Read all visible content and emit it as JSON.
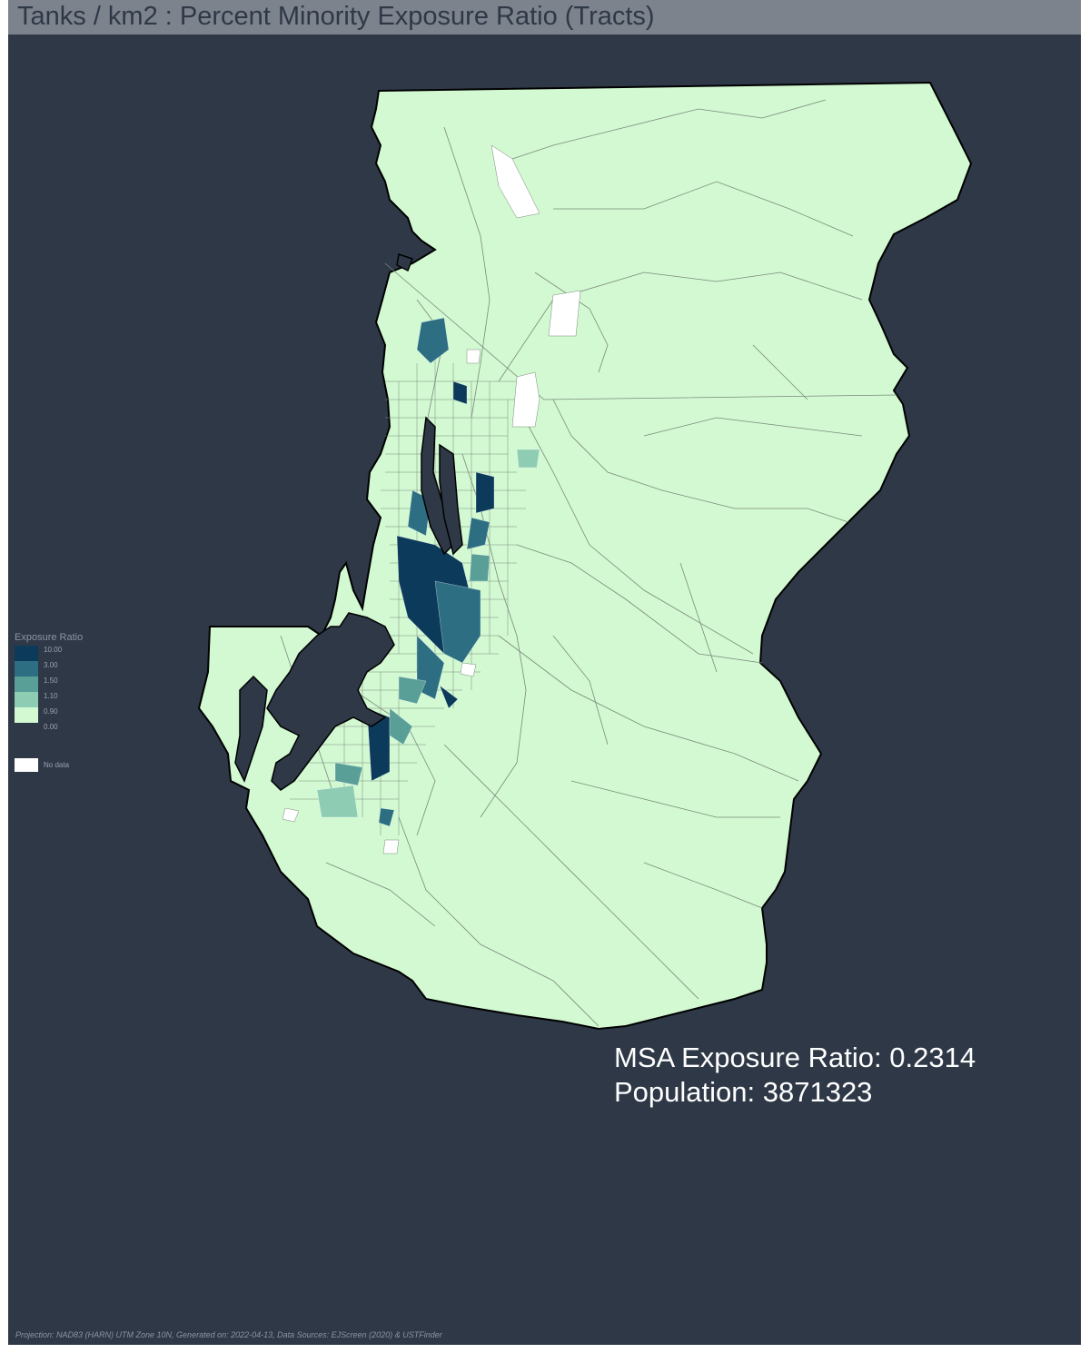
{
  "title": "Tanks / km2 : Percent Minority Exposure Ratio (Tracts)",
  "legend": {
    "title": "Exposure Ratio",
    "bins": [
      {
        "label": "10.00",
        "color": "#0c3a5a"
      },
      {
        "label": "3.00",
        "color": "#2d6e82"
      },
      {
        "label": "1.50",
        "color": "#5a9e98"
      },
      {
        "label": "1.10",
        "color": "#8ecdb4"
      },
      {
        "label": "0.90",
        "color": "#d2f9d2"
      },
      {
        "label": "0.00",
        "color": ""
      }
    ],
    "no_data_label": "No data",
    "no_data_color": "#ffffff"
  },
  "stats": {
    "exposure": "MSA Exposure Ratio: 0.2314",
    "population": "Population: 3871323"
  },
  "footer": "Projection: NAD83 (HARN) UTM Zone 10N, Generated on: 2022-04-13, Data Sources: EJScreen (2020) & USTFinder",
  "colors": {
    "background": "#2e3847",
    "title_bar": "#7d838c",
    "land": "#d2f9d2",
    "tract_line": "#7a8a7a",
    "water": "#2e3847"
  }
}
